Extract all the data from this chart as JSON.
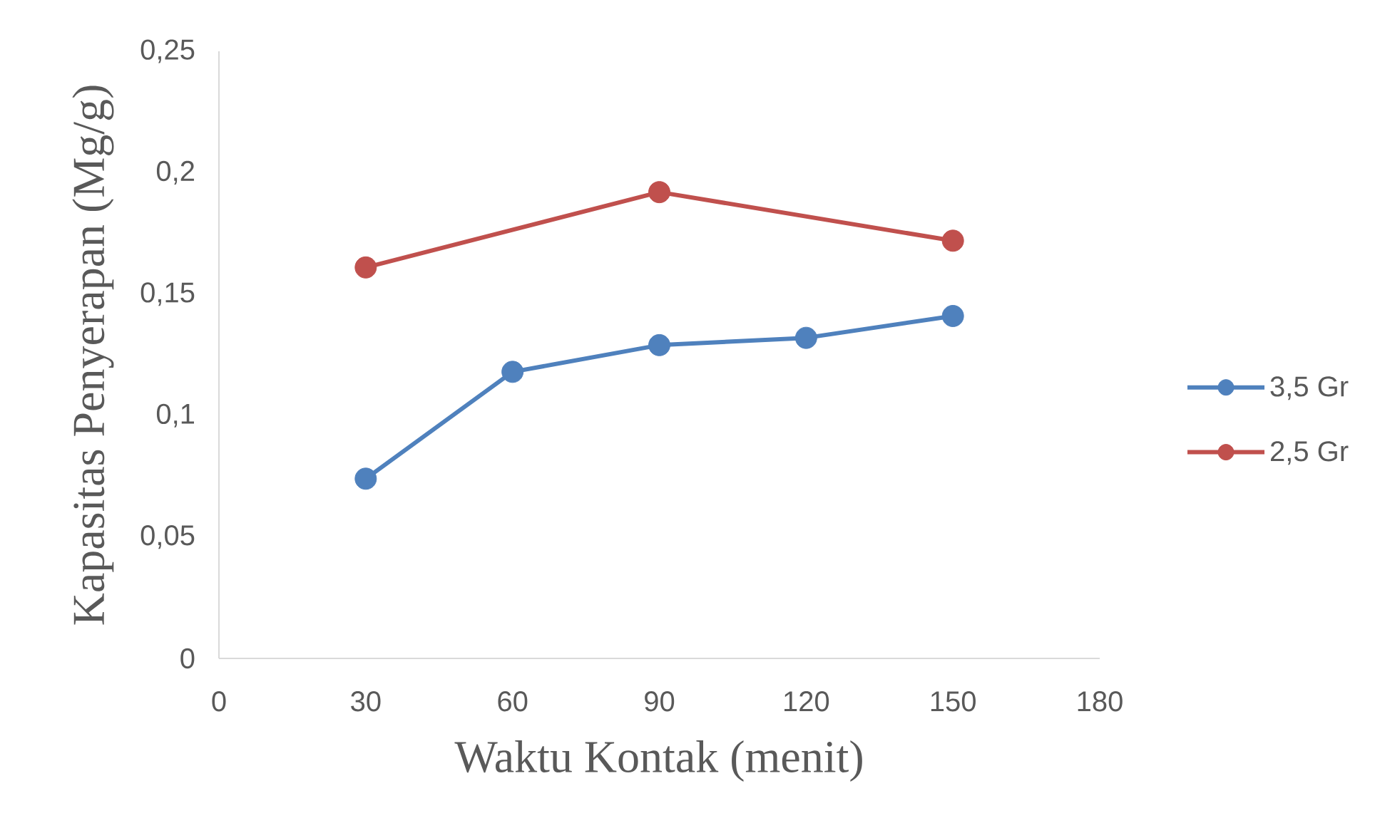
{
  "chart_data": {
    "type": "line",
    "xlabel": "Waktu Kontak (menit)",
    "ylabel": "Kapasitas Penyerapan (Mg/g)",
    "x": [
      30,
      60,
      90,
      120,
      150
    ],
    "series": [
      {
        "name": "3,5 Gr",
        "color": "#4f81bd",
        "values": [
          0.074,
          0.118,
          0.129,
          0.132,
          0.141
        ]
      },
      {
        "name": "2,5 Gr",
        "color": "#c0504d",
        "x": [
          30,
          90,
          150
        ],
        "values": [
          0.161,
          0.192,
          0.172
        ]
      }
    ],
    "xlim": [
      0,
      180
    ],
    "xticks": [
      0,
      30,
      60,
      90,
      120,
      150,
      180
    ],
    "ylim": [
      0,
      0.25
    ],
    "yticks": [
      0,
      {
        "value": 0.05,
        "label": "0,05"
      },
      {
        "value": 0.1,
        "label": "0,1"
      },
      {
        "value": 0.15,
        "label": "0,15"
      },
      {
        "value": 0.2,
        "label": "0,2"
      },
      {
        "value": 0.25,
        "label": "0,25"
      }
    ],
    "legend": "right",
    "marker": "circle",
    "line_style": "solid"
  }
}
